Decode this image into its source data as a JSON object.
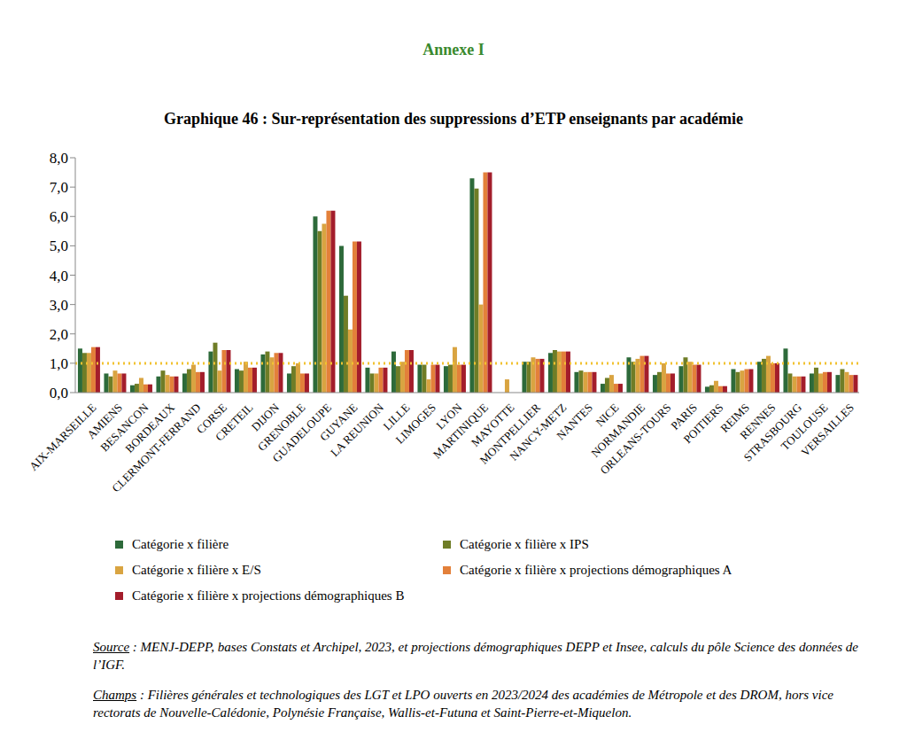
{
  "chart_data": {
    "type": "bar",
    "header": "Annexe I",
    "title": "Graphique 46 : Sur-représentation des suppressions d’ETP enseignants par académie",
    "categories": [
      "AIX-MARSEILLE",
      "AMIENS",
      "BESANCON",
      "BORDEAUX",
      "CLERMONT-FERRAND",
      "CORSE",
      "CRETEIL",
      "DIJON",
      "GRENOBLE",
      "GUADELOUPE",
      "GUYANE",
      "LA REUNION",
      "LILLE",
      "LIMOGES",
      "LYON",
      "MARTINIQUE",
      "MAYOTTE",
      "MONTPELLIER",
      "NANCY-METZ",
      "NANTES",
      "NICE",
      "NORMANDIE",
      "ORLEANS-TOURS",
      "PARIS",
      "POITIERS",
      "REIMS",
      "RENNES",
      "STRASBOURG",
      "TOULOUSE",
      "VERSAILLES"
    ],
    "series": [
      {
        "name": "Catégorie x filière",
        "color": "#2d6a3a",
        "values": [
          1.5,
          0.65,
          0.25,
          0.55,
          0.65,
          1.4,
          0.8,
          1.3,
          0.65,
          6.0,
          5.0,
          0.85,
          1.4,
          0.95,
          0.9,
          7.3,
          null,
          1.05,
          1.35,
          0.7,
          0.3,
          1.2,
          0.6,
          0.9,
          0.2,
          0.8,
          1.05,
          1.5,
          0.65,
          0.6
        ]
      },
      {
        "name": "Catégorie x filière x IPS",
        "color": "#6f7d27",
        "values": [
          1.35,
          0.55,
          0.3,
          0.75,
          0.8,
          1.7,
          0.75,
          1.4,
          0.9,
          5.5,
          3.3,
          0.65,
          0.9,
          0.95,
          0.95,
          6.95,
          null,
          1.05,
          1.45,
          0.75,
          0.5,
          1.05,
          0.7,
          1.2,
          0.25,
          0.7,
          1.15,
          0.65,
          0.85,
          0.8
        ]
      },
      {
        "name": "Catégorie x filière x E/S",
        "color": "#d9a441",
        "values": [
          1.35,
          0.75,
          0.5,
          0.6,
          0.95,
          0.75,
          1.05,
          1.2,
          1.0,
          5.75,
          2.15,
          0.65,
          1.05,
          0.45,
          1.55,
          3.0,
          0.45,
          1.2,
          1.4,
          0.7,
          0.6,
          1.15,
          1.0,
          1.05,
          0.4,
          0.75,
          1.25,
          0.55,
          0.65,
          0.7
        ]
      },
      {
        "name": "Catégorie x filière x projections démographiques A",
        "color": "#e3803a",
        "values": [
          1.55,
          0.65,
          0.28,
          0.55,
          0.7,
          1.45,
          0.85,
          1.35,
          0.65,
          6.2,
          5.15,
          0.85,
          1.45,
          0.95,
          0.95,
          7.5,
          null,
          1.15,
          1.4,
          0.7,
          0.3,
          1.25,
          0.65,
          0.95,
          0.22,
          0.8,
          1.0,
          0.55,
          0.7,
          0.6
        ]
      },
      {
        "name": "Catégorie x filière x projections démographiques B",
        "color": "#a31d2b",
        "values": [
          1.55,
          0.65,
          0.28,
          0.55,
          0.7,
          1.45,
          0.85,
          1.35,
          0.65,
          6.2,
          5.15,
          0.85,
          1.45,
          0.95,
          0.95,
          7.5,
          null,
          1.15,
          1.4,
          0.7,
          0.3,
          1.25,
          0.65,
          0.95,
          0.22,
          0.8,
          1.0,
          0.55,
          0.7,
          0.6
        ]
      }
    ],
    "ylim": [
      0,
      8
    ],
    "yticks": [
      {
        "value": 0,
        "label": "0,0"
      },
      {
        "value": 1,
        "label": "1,0"
      },
      {
        "value": 2,
        "label": "2,0"
      },
      {
        "value": 3,
        "label": "3,0"
      },
      {
        "value": 4,
        "label": "4,0"
      },
      {
        "value": 5,
        "label": "5,0"
      },
      {
        "value": 6,
        "label": "6,0"
      },
      {
        "value": 7,
        "label": "7,0"
      },
      {
        "value": 8,
        "label": "8,0"
      }
    ],
    "reference_line": {
      "value": 1,
      "color": "#f2c230",
      "line_style": "dotted"
    },
    "grid": false,
    "legend": "bottom",
    "notes": [
      {
        "label": "Source",
        "text": " : MENJ-DEPP, bases Constats et Archipel, 2023, et projections démographiques DEPP et Insee, calculs du pôle Science des données de l’IGF."
      },
      {
        "label": "Champs",
        "text": " : Filières générales et technologiques des LGT et LPO ouverts en 2023/2024 des académies de Métropole et des DROM, hors vice rectorats de Nouvelle-Calédonie, Polynésie Française, Wallis-et-Futuna et Saint-Pierre-et-Miquelon."
      }
    ]
  }
}
